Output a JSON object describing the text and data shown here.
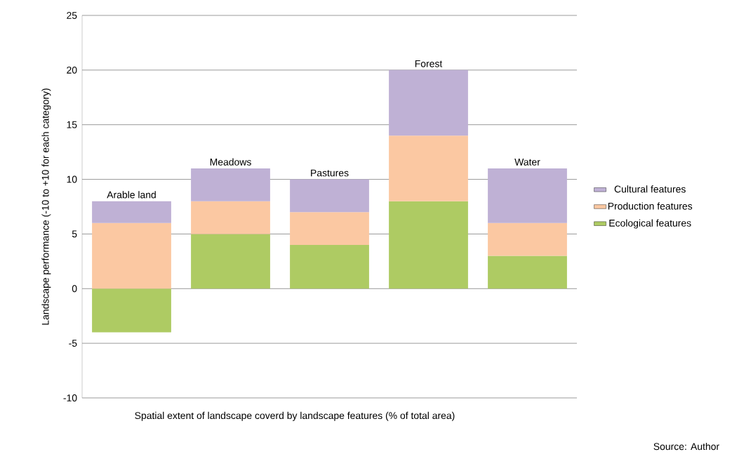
{
  "chart_data": {
    "type": "bar",
    "stacked": true,
    "xlabel": "Spatial extent of landscape coverd by landscape features (% of total area)",
    "ylabel": "Landscape performance (-10 to +10 for each category)",
    "categories": [
      "Arable land",
      "Meadows",
      "Pastures",
      "Forest",
      "Water"
    ],
    "series": [
      {
        "name": "Ecological features",
        "color": "#aecb63",
        "values": [
          -4,
          5,
          4,
          8,
          3
        ]
      },
      {
        "name": "Production features",
        "color": "#fbc8a2",
        "values": [
          6,
          3,
          3,
          6,
          3
        ]
      },
      {
        "name": "Cultural features",
        "color": "#bfb1d5",
        "values": [
          2,
          3,
          3,
          6,
          5
        ]
      }
    ],
    "ylim": [
      -10,
      25
    ],
    "yticks": [
      -10,
      -5,
      0,
      5,
      10,
      15,
      20,
      25
    ],
    "grid": "y",
    "legend": "right",
    "annotations": [
      "Source: Author"
    ]
  }
}
